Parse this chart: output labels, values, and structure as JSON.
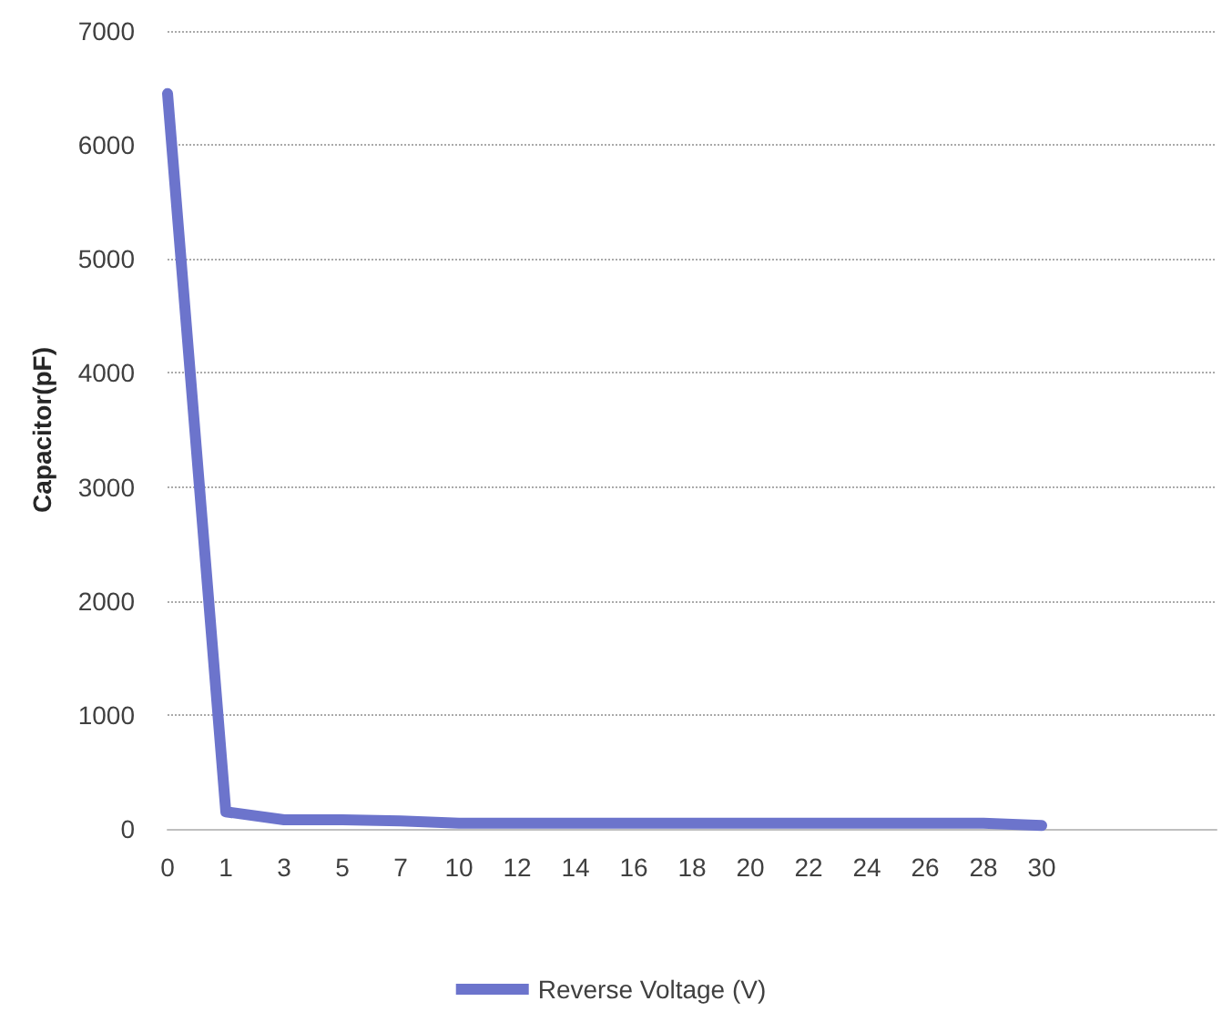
{
  "chart_data": {
    "type": "line",
    "ylabel": "Capacitor(pF)",
    "categories": [
      "0",
      "1",
      "3",
      "5",
      "7",
      "10",
      "12",
      "14",
      "16",
      "18",
      "20",
      "22",
      "24",
      "26",
      "28",
      "30",
      null,
      null,
      null
    ],
    "series": [
      {
        "name": "Reverse Voltage (V)",
        "color": "#6c74cc",
        "values": [
          6450,
          150,
          80,
          80,
          70,
          50,
          50,
          50,
          50,
          50,
          50,
          50,
          50,
          50,
          50,
          30,
          null,
          null,
          null
        ]
      }
    ],
    "ylim": [
      0,
      7000
    ],
    "yticks": [
      0,
      1000,
      2000,
      3000,
      4000,
      5000,
      6000,
      7000
    ],
    "grid": "y",
    "legend": "bottom",
    "marker": "none",
    "line_style": "solid"
  }
}
